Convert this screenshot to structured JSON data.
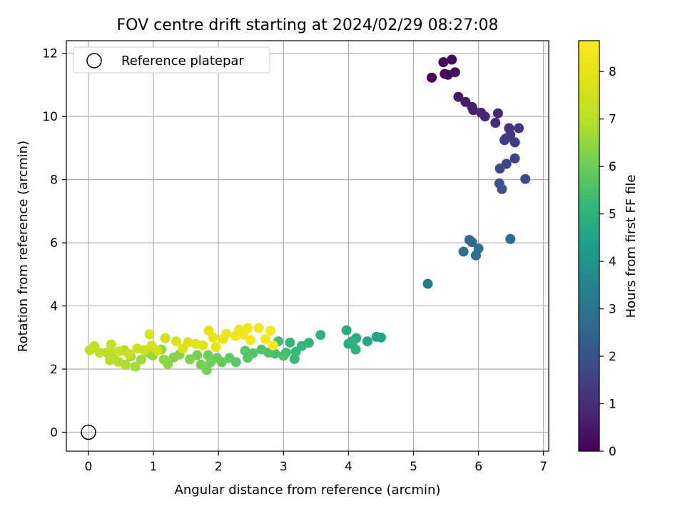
{
  "chart_data": {
    "type": "scatter",
    "title": "FOV centre drift starting at 2024/02/29 08:27:08",
    "xlabel": "Angular distance from reference (arcmin)",
    "ylabel": "Rotation from reference (arcmin)",
    "xlim": [
      -0.34,
      7.08
    ],
    "ylim": [
      -0.6,
      12.4
    ],
    "xticks": [
      0,
      1,
      2,
      3,
      4,
      5,
      6,
      7
    ],
    "yticks": [
      0,
      2,
      4,
      6,
      8,
      10,
      12
    ],
    "grid": true,
    "legend": {
      "placement": "top-left",
      "entries": [
        "Reference platepar"
      ]
    },
    "reference_point": {
      "x": 0,
      "y": 0
    },
    "colorbar": {
      "label": "Hours from first FF file",
      "range": [
        0,
        8.65
      ],
      "ticks": [
        0,
        1,
        2,
        3,
        4,
        5,
        6,
        7,
        8
      ],
      "colormap": "viridis"
    },
    "points": [
      {
        "x": 5.28,
        "y": 11.23,
        "c": 0.05
      },
      {
        "x": 5.46,
        "y": 11.72,
        "c": 0.1
      },
      {
        "x": 5.59,
        "y": 11.8,
        "c": 0.15
      },
      {
        "x": 5.48,
        "y": 11.35,
        "c": 0.2
      },
      {
        "x": 5.53,
        "y": 11.32,
        "c": 0.25
      },
      {
        "x": 5.64,
        "y": 11.4,
        "c": 0.3
      },
      {
        "x": 5.69,
        "y": 10.62,
        "c": 0.5
      },
      {
        "x": 5.8,
        "y": 10.46,
        "c": 0.6
      },
      {
        "x": 5.9,
        "y": 10.3,
        "c": 0.65
      },
      {
        "x": 5.92,
        "y": 10.2,
        "c": 0.7
      },
      {
        "x": 6.04,
        "y": 10.12,
        "c": 0.8
      },
      {
        "x": 6.1,
        "y": 10.0,
        "c": 0.85
      },
      {
        "x": 6.3,
        "y": 10.1,
        "c": 0.9
      },
      {
        "x": 6.26,
        "y": 9.8,
        "c": 1.0
      },
      {
        "x": 6.47,
        "y": 9.63,
        "c": 1.1
      },
      {
        "x": 6.62,
        "y": 9.63,
        "c": 1.15
      },
      {
        "x": 6.49,
        "y": 9.42,
        "c": 1.2
      },
      {
        "x": 6.42,
        "y": 9.3,
        "c": 1.25
      },
      {
        "x": 6.4,
        "y": 9.25,
        "c": 1.3
      },
      {
        "x": 6.56,
        "y": 9.18,
        "c": 1.35
      },
      {
        "x": 6.56,
        "y": 8.67,
        "c": 1.5
      },
      {
        "x": 6.43,
        "y": 8.5,
        "c": 1.6
      },
      {
        "x": 6.33,
        "y": 8.35,
        "c": 1.7
      },
      {
        "x": 6.72,
        "y": 8.02,
        "c": 1.8
      },
      {
        "x": 6.32,
        "y": 7.88,
        "c": 1.9
      },
      {
        "x": 6.36,
        "y": 7.7,
        "c": 2.0
      },
      {
        "x": 5.86,
        "y": 6.09,
        "c": 2.6
      },
      {
        "x": 5.9,
        "y": 6.02,
        "c": 2.65
      },
      {
        "x": 6.49,
        "y": 6.12,
        "c": 2.7
      },
      {
        "x": 5.77,
        "y": 5.72,
        "c": 2.8
      },
      {
        "x": 6.0,
        "y": 5.82,
        "c": 2.85
      },
      {
        "x": 5.96,
        "y": 5.6,
        "c": 2.9
      },
      {
        "x": 5.22,
        "y": 4.7,
        "c": 3.2
      },
      {
        "x": 4.5,
        "y": 3.0,
        "c": 4.5
      },
      {
        "x": 4.43,
        "y": 3.02,
        "c": 4.55
      },
      {
        "x": 4.29,
        "y": 2.88,
        "c": 4.6
      },
      {
        "x": 4.12,
        "y": 2.98,
        "c": 4.7
      },
      {
        "x": 4.0,
        "y": 2.8,
        "c": 4.75
      },
      {
        "x": 3.97,
        "y": 3.23,
        "c": 4.8
      },
      {
        "x": 4.06,
        "y": 2.84,
        "c": 4.85
      },
      {
        "x": 4.11,
        "y": 2.62,
        "c": 4.9
      },
      {
        "x": 4.05,
        "y": 2.88,
        "c": 4.95
      },
      {
        "x": 3.57,
        "y": 3.08,
        "c": 5.0
      },
      {
        "x": 3.39,
        "y": 2.83,
        "c": 5.1
      },
      {
        "x": 3.28,
        "y": 2.73,
        "c": 5.15
      },
      {
        "x": 3.1,
        "y": 2.84,
        "c": 5.2
      },
      {
        "x": 3.19,
        "y": 2.55,
        "c": 5.25
      },
      {
        "x": 3.17,
        "y": 2.32,
        "c": 5.3
      },
      {
        "x": 3.04,
        "y": 2.52,
        "c": 5.35
      },
      {
        "x": 2.92,
        "y": 2.88,
        "c": 5.4
      },
      {
        "x": 2.87,
        "y": 2.49,
        "c": 5.45
      },
      {
        "x": 3.0,
        "y": 2.42,
        "c": 5.5
      },
      {
        "x": 2.77,
        "y": 2.52,
        "c": 5.55
      },
      {
        "x": 2.66,
        "y": 2.62,
        "c": 5.6
      },
      {
        "x": 2.53,
        "y": 2.5,
        "c": 5.65
      },
      {
        "x": 2.45,
        "y": 2.36,
        "c": 5.7
      },
      {
        "x": 2.41,
        "y": 2.58,
        "c": 5.75
      },
      {
        "x": 2.27,
        "y": 2.22,
        "c": 5.8
      },
      {
        "x": 2.17,
        "y": 2.35,
        "c": 5.85
      },
      {
        "x": 2.05,
        "y": 2.22,
        "c": 5.9
      },
      {
        "x": 1.98,
        "y": 2.35,
        "c": 5.95
      },
      {
        "x": 1.84,
        "y": 2.44,
        "c": 6.0
      },
      {
        "x": 1.88,
        "y": 2.22,
        "c": 6.05
      },
      {
        "x": 1.82,
        "y": 1.97,
        "c": 6.1
      },
      {
        "x": 1.73,
        "y": 2.14,
        "c": 6.15
      },
      {
        "x": 1.67,
        "y": 2.44,
        "c": 6.2
      },
      {
        "x": 1.56,
        "y": 2.31,
        "c": 6.25
      },
      {
        "x": 1.4,
        "y": 2.46,
        "c": 6.3
      },
      {
        "x": 1.31,
        "y": 2.37,
        "c": 6.35
      },
      {
        "x": 1.22,
        "y": 2.16,
        "c": 6.4
      },
      {
        "x": 1.16,
        "y": 2.3,
        "c": 6.45
      },
      {
        "x": 1.12,
        "y": 2.62,
        "c": 6.5
      },
      {
        "x": 0.99,
        "y": 2.43,
        "c": 6.55
      },
      {
        "x": 0.92,
        "y": 2.52,
        "c": 6.6
      },
      {
        "x": 0.81,
        "y": 2.3,
        "c": 6.65
      },
      {
        "x": 0.72,
        "y": 2.08,
        "c": 6.7
      },
      {
        "x": 0.65,
        "y": 2.4,
        "c": 6.75
      },
      {
        "x": 0.57,
        "y": 2.14,
        "c": 6.8
      },
      {
        "x": 0.55,
        "y": 2.6,
        "c": 6.85
      },
      {
        "x": 0.46,
        "y": 2.23,
        "c": 6.9
      },
      {
        "x": 0.4,
        "y": 2.5,
        "c": 6.95
      },
      {
        "x": 0.33,
        "y": 2.28,
        "c": 7.0
      },
      {
        "x": 0.28,
        "y": 2.52,
        "c": 7.05
      },
      {
        "x": 0.17,
        "y": 2.52,
        "c": 7.1
      },
      {
        "x": 0.09,
        "y": 2.73,
        "c": 7.15
      },
      {
        "x": 0.02,
        "y": 2.6,
        "c": 7.2
      },
      {
        "x": 0.35,
        "y": 2.78,
        "c": 7.25
      },
      {
        "x": 0.47,
        "y": 2.56,
        "c": 7.3
      },
      {
        "x": 0.62,
        "y": 2.48,
        "c": 7.35
      },
      {
        "x": 0.75,
        "y": 2.65,
        "c": 7.4
      },
      {
        "x": 0.86,
        "y": 2.6,
        "c": 7.45
      },
      {
        "x": 0.97,
        "y": 2.74,
        "c": 7.5
      },
      {
        "x": 1.06,
        "y": 2.58,
        "c": 7.55
      },
      {
        "x": 1.18,
        "y": 2.98,
        "c": 7.6
      },
      {
        "x": 0.94,
        "y": 3.1,
        "c": 7.65
      },
      {
        "x": 1.35,
        "y": 2.88,
        "c": 7.7
      },
      {
        "x": 1.45,
        "y": 2.65,
        "c": 7.75
      },
      {
        "x": 1.53,
        "y": 2.85,
        "c": 7.8
      },
      {
        "x": 1.65,
        "y": 2.8,
        "c": 7.85
      },
      {
        "x": 1.76,
        "y": 2.75,
        "c": 7.9
      },
      {
        "x": 1.85,
        "y": 3.22,
        "c": 7.95
      },
      {
        "x": 1.92,
        "y": 3.0,
        "c": 8.0
      },
      {
        "x": 1.96,
        "y": 2.7,
        "c": 8.05
      },
      {
        "x": 2.07,
        "y": 2.95,
        "c": 8.1
      },
      {
        "x": 2.12,
        "y": 3.12,
        "c": 8.15
      },
      {
        "x": 2.26,
        "y": 3.05,
        "c": 8.2
      },
      {
        "x": 2.32,
        "y": 3.25,
        "c": 8.25
      },
      {
        "x": 2.38,
        "y": 3.1,
        "c": 8.3
      },
      {
        "x": 2.45,
        "y": 3.3,
        "c": 8.35
      },
      {
        "x": 2.49,
        "y": 2.92,
        "c": 8.4
      },
      {
        "x": 2.62,
        "y": 3.3,
        "c": 8.45
      },
      {
        "x": 2.72,
        "y": 2.95,
        "c": 8.5
      },
      {
        "x": 2.8,
        "y": 3.22,
        "c": 8.55
      },
      {
        "x": 2.84,
        "y": 2.75,
        "c": 8.6
      }
    ]
  }
}
